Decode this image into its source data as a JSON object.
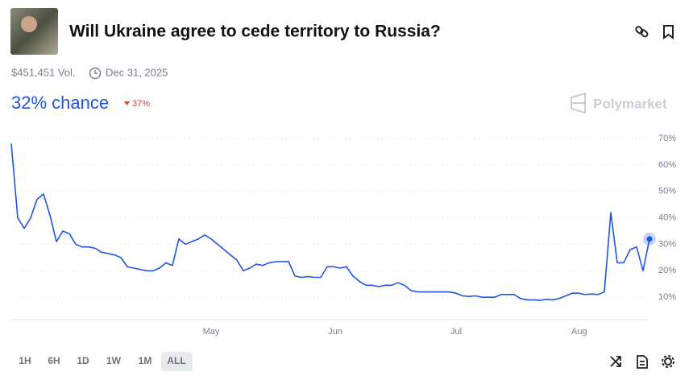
{
  "header": {
    "title": "Will Ukraine agree to cede territory to Russia?",
    "volume": "$451,451 Vol.",
    "end_date": "Dec 31, 2025",
    "chance": "32% chance",
    "change": "37%",
    "brand": "Polymarket"
  },
  "time_buttons": [
    "1H",
    "6H",
    "1D",
    "1W",
    "1M",
    "ALL"
  ],
  "selected_button": "ALL",
  "chart_data": {
    "type": "line",
    "grid": true,
    "color": "#1f55e0",
    "ylim": [
      0,
      70
    ],
    "yticks": [
      {
        "value": 10,
        "label": "10%"
      },
      {
        "value": 20,
        "label": "20%"
      },
      {
        "value": 30,
        "label": "30%"
      },
      {
        "value": 40,
        "label": "40%"
      },
      {
        "value": 50,
        "label": "50%"
      },
      {
        "value": 60,
        "label": "60%"
      },
      {
        "value": 70,
        "label": "70%"
      }
    ],
    "xlim": [
      0,
      99
    ],
    "xticks": [
      {
        "value": 31,
        "label": "May"
      },
      {
        "value": 50.25,
        "label": "Jun"
      },
      {
        "value": 69,
        "label": "Jul"
      },
      {
        "value": 88.1,
        "label": "Aug"
      }
    ],
    "values": [
      68,
      40,
      36,
      40,
      47,
      49,
      41,
      31,
      35,
      34,
      30,
      29,
      29,
      28.5,
      27,
      26.5,
      26,
      25,
      21.5,
      21,
      20.5,
      20,
      20,
      21,
      23,
      22,
      32,
      30,
      31,
      32,
      33.5,
      32,
      30,
      28,
      26,
      24,
      20,
      21,
      22.5,
      22,
      23,
      23.4,
      23.5,
      23.5,
      18,
      17.5,
      17.8,
      17.5,
      17.5,
      21.5,
      21.5,
      21,
      21.5,
      18,
      16,
      14.5,
      14.5,
      14,
      14.5,
      14.5,
      15.5,
      14.5,
      12.5,
      12,
      12,
      12,
      12,
      12,
      12,
      11.5,
      10.5,
      10.3,
      10.5,
      10,
      10,
      10,
      11,
      11,
      11,
      9.5,
      9,
      9,
      8.8,
      9.2,
      9,
      9.5,
      10.5,
      11.5,
      11.5,
      11,
      11.2,
      11,
      12,
      42,
      23,
      23,
      28,
      29,
      20,
      32
    ]
  }
}
